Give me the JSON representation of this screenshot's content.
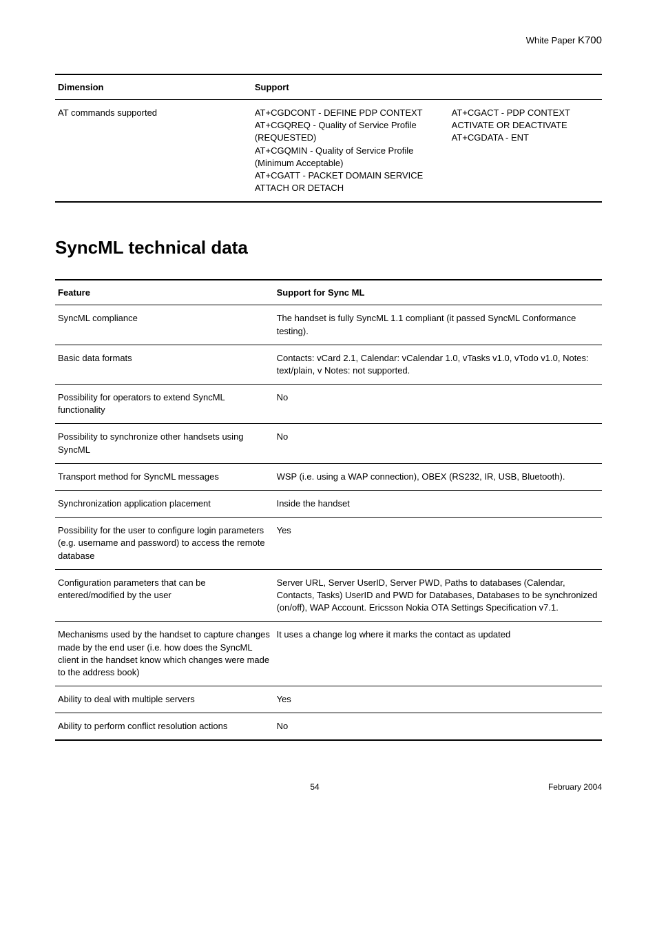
{
  "header": {
    "white_paper": "White Paper",
    "model": "K700"
  },
  "table1": {
    "headers": {
      "dimension": "Dimension",
      "support": "Support"
    },
    "row": {
      "dimension": "AT commands supported",
      "support_left": "AT+CGDCONT - DEFINE PDP CONTEXT\nAT+CGQREQ - Quality of Service Profile (REQUESTED)\nAT+CGQMIN - Quality of Service Profile (Minimum Acceptable)\nAT+CGATT - PACKET DOMAIN SERVICE ATTACH OR DETACH",
      "support_right": "AT+CGACT - PDP CONTEXT ACTIVATE OR DEACTIVATE\nAT+CGDATA - ENT"
    }
  },
  "section_title": "SyncML technical data",
  "table2": {
    "headers": {
      "feature": "Feature",
      "support": "Support for Sync ML"
    },
    "rows": [
      {
        "feature": "SyncML compliance",
        "support": "The handset is fully SyncML 1.1 compliant (it passed SyncML Conformance testing)."
      },
      {
        "feature": "Basic data formats",
        "support": "Contacts: vCard 2.1, Calendar: vCalendar 1.0, vTasks v1.0, vTodo v1.0, Notes: text/plain, v Notes: not supported."
      },
      {
        "feature": "Possibility for operators to extend SyncML functionality",
        "support": "No"
      },
      {
        "feature": "Possibility to synchronize other handsets using SyncML",
        "support": "No"
      },
      {
        "feature": "Transport method for SyncML messages",
        "support": "WSP (i.e. using a WAP connection), OBEX (RS232, IR, USB, Bluetooth)."
      },
      {
        "feature": "Synchronization application placement",
        "support": "Inside the handset"
      },
      {
        "feature": "Possibility for the user to configure login parameters (e.g. username and password) to access the remote database",
        "support": "Yes"
      },
      {
        "feature": "Configuration parameters that can be entered/modified by the user",
        "support": "Server URL, Server UserID, Server PWD, Paths to databases (Calendar, Contacts, Tasks) UserID and PWD for Databases, Databases to be synchronized (on/off), WAP Account. Ericsson Nokia OTA Settings Specification v7.1."
      },
      {
        "feature": "Mechanisms used by the handset to capture changes made by the end user (i.e. how does the SyncML client in the handset know which changes were made to the address book)",
        "support": "It uses a change log where it marks the contact as updated"
      },
      {
        "feature": "Ability to deal with multiple servers",
        "support": "Yes"
      },
      {
        "feature": "Ability to perform conflict resolution actions",
        "support": "No"
      }
    ]
  },
  "footer": {
    "page": "54",
    "date": "February 2004"
  }
}
